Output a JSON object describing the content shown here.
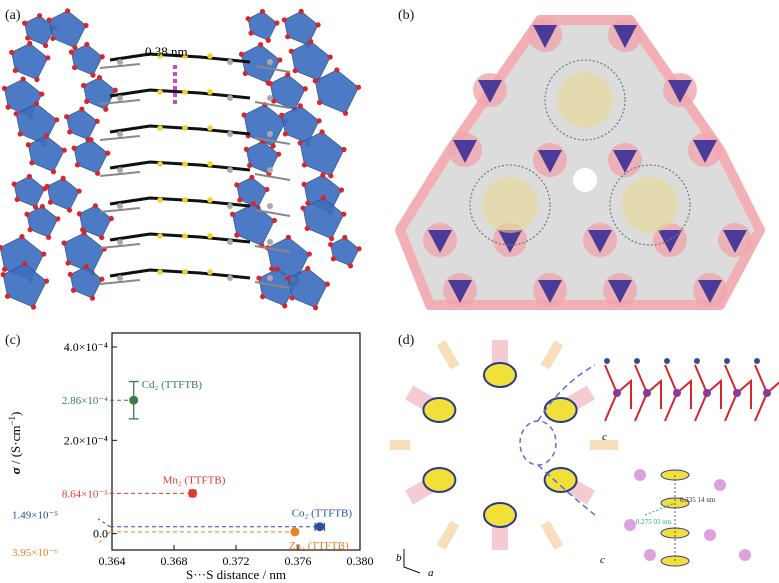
{
  "panels": {
    "a": {
      "label": "(a)",
      "distance": "0.38 nm"
    },
    "b": {
      "label": "(b)"
    },
    "c": {
      "label": "(c)"
    },
    "d": {
      "label": "(d)",
      "axis_b": "b",
      "axis_a": "a",
      "axis_c1": "c",
      "axis_c2": "c",
      "dist_1": "0.335 14 nm",
      "dist_2": "0.275 03 nm"
    }
  },
  "chart_data": {
    "type": "scatter",
    "xlabel": "S···S distance / nm",
    "ylabel_sigma": "σ",
    "ylabel_unit": " / (S·cm",
    "ylabel_sup": "−1",
    "ylabel_close": ")",
    "xlim": [
      0.364,
      0.38
    ],
    "ylim": [
      -3.5e-05,
      0.00043
    ],
    "x_ticks": [
      "0.364",
      "0.368",
      "0.372",
      "0.376",
      "0.380"
    ],
    "y_ticks": [
      {
        "value": 0.0,
        "label": "0.0"
      },
      {
        "value": 0.0002,
        "label": "2.0×10⁻⁴"
      },
      {
        "value": 0.0004,
        "label": "4.0×10⁻⁴"
      }
    ],
    "points": [
      {
        "name": "Cd₂ (TTFTB)",
        "x": 0.3654,
        "y": 0.000286,
        "err": 4e-05,
        "xerr": 0,
        "color": "#3a7d44",
        "value_label": "2.86×10⁻⁴"
      },
      {
        "name": "Mn₂ (TTFTB)",
        "x": 0.3692,
        "y": 8.64e-05,
        "err": 0,
        "xerr": 0.0002,
        "color": "#e03a2f",
        "value_label": "8.64×10⁻⁵"
      },
      {
        "name": "Co₂ (TTFTB)",
        "x": 0.3774,
        "y": 1.49e-05,
        "err": 0,
        "xerr": 0.0003,
        "color": "#2c4fa0",
        "value_label": "1.49×10⁻⁵"
      },
      {
        "name": "Zn₂ (TTFTB)",
        "x": 0.3758,
        "y": 3.95e-06,
        "err": 0,
        "xerr": 0,
        "color": "#e8822a",
        "value_label": "3.95×10⁻⁶"
      }
    ]
  }
}
